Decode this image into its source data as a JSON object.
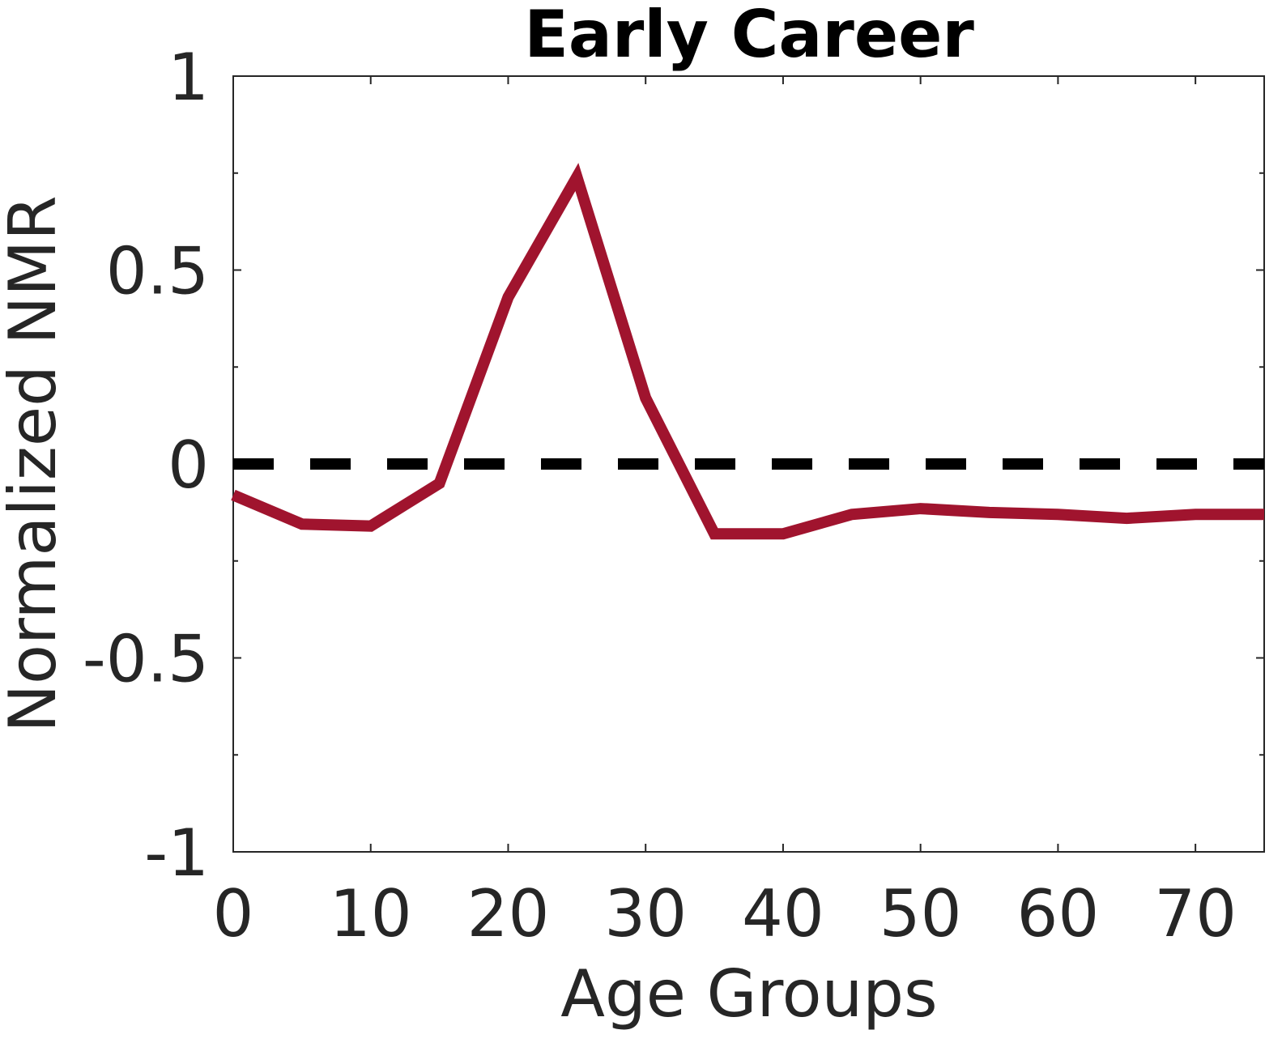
{
  "chart_data": {
    "type": "line",
    "title": "Early Career",
    "xlabel": "Age Groups",
    "ylabel": "Normalized NMR",
    "xlim": [
      0,
      75
    ],
    "ylim": [
      -1,
      1
    ],
    "xticks": [
      0,
      10,
      20,
      30,
      40,
      50,
      60,
      70
    ],
    "xtick_labels": [
      "0",
      "10",
      "20",
      "30",
      "40",
      "50",
      "60",
      "70"
    ],
    "yticks": [
      -1,
      -0.5,
      0,
      0.5,
      1
    ],
    "ytick_labels": [
      "-1",
      "-0.5",
      "0",
      "0.5",
      "1"
    ],
    "grid": false,
    "series": [
      {
        "x": [
          0,
          5,
          10,
          15,
          20,
          25,
          30,
          35,
          40,
          45,
          50,
          55,
          60,
          65,
          70,
          75
        ],
        "values": [
          -0.08,
          -0.155,
          -0.16,
          -0.05,
          0.43,
          0.74,
          0.17,
          -0.18,
          -0.18,
          -0.13,
          -0.115,
          -0.125,
          -0.13,
          -0.14,
          -0.13,
          -0.13
        ],
        "color": "#a0142e",
        "style": "solid"
      }
    ],
    "reference_lines": [
      {
        "y": 0,
        "color": "#000000",
        "style": "dashed"
      }
    ]
  }
}
